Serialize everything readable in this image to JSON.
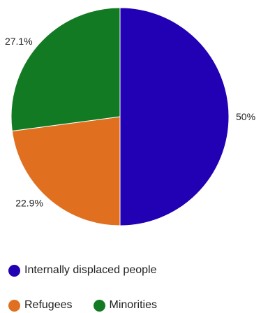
{
  "chart_data": {
    "type": "pie",
    "title": "",
    "slices": [
      {
        "label": "Internally displaced people",
        "value": 50,
        "display": "50%",
        "color": "#2200b3"
      },
      {
        "label": "Refugees",
        "value": 22.9,
        "display": "22.9%",
        "color": "#e07020"
      },
      {
        "label": "Minorities",
        "value": 27.1,
        "display": "27.1%",
        "color": "#117a22"
      }
    ],
    "legend_position": "bottom"
  }
}
